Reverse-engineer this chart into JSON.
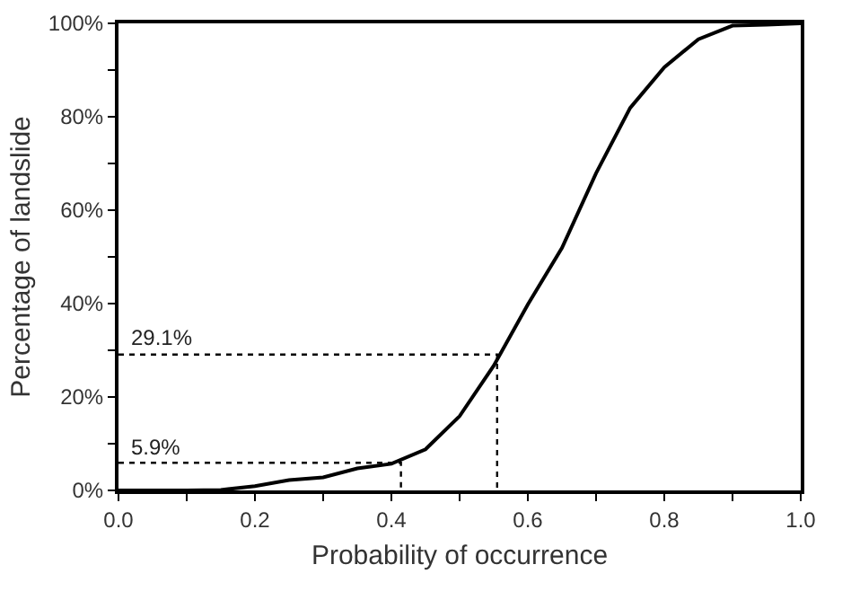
{
  "chart_data": {
    "type": "line",
    "xlabel": "Probability of occurrence",
    "ylabel": "Percentage of landslide",
    "series": [
      {
        "color": "#000000",
        "x": [
          0,
          0.1,
          0.15,
          0.2,
          0.25,
          0.3,
          0.35,
          0.4,
          0.45,
          0.5,
          0.55,
          0.6,
          0.65,
          0.7,
          0.75,
          0.8,
          0.85,
          0.9,
          0.95,
          1.0
        ],
        "values": [
          0,
          0,
          0.1,
          0.9,
          2.2,
          2.8,
          4.7,
          5.7,
          8.8,
          15.9,
          26.7,
          39.8,
          51.9,
          67.9,
          81.9,
          90.6,
          96.6,
          99.5,
          99.7,
          100
        ]
      },
      {
        "color": "#000000",
        "line_style": "dotted",
        "x": [
          0,
          0.555,
          0.555
        ],
        "values": [
          29.1,
          29.1,
          0
        ]
      },
      {
        "color": "#000000",
        "line_style": "dotted",
        "x": [
          0,
          0.414,
          0.414
        ],
        "values": [
          5.9,
          5.9,
          0
        ]
      }
    ],
    "annotations": [
      {
        "text": "29.1%",
        "x": 0,
        "y": 29.1
      },
      {
        "text": "5.9%",
        "x": 0,
        "y": 5.9
      }
    ],
    "xlim": [
      0,
      1
    ],
    "ylim": [
      0,
      100
    ],
    "xticks": [
      {
        "value": 0,
        "label": "0.0"
      },
      {
        "value": 0.1,
        "label": null
      },
      0.2,
      {
        "value": 0.3,
        "label": null
      },
      0.4,
      {
        "value": 0.5,
        "label": null
      },
      0.6,
      {
        "value": 0.7,
        "label": null
      },
      0.8,
      {
        "value": 0.9,
        "label": null
      },
      {
        "value": 1,
        "label": "1.0"
      }
    ],
    "yticks": [
      {
        "value": 0,
        "label": "0%"
      },
      {
        "value": 10,
        "label": null
      },
      {
        "value": 20,
        "label": "20%"
      },
      {
        "value": 30,
        "label": null
      },
      {
        "value": 40,
        "label": "40%"
      },
      {
        "value": 50,
        "label": null
      },
      {
        "value": 60,
        "label": "60%"
      },
      {
        "value": 70,
        "label": null
      },
      {
        "value": 80,
        "label": "80%"
      },
      {
        "value": 90,
        "label": null
      },
      {
        "value": 100,
        "label": "100%"
      }
    ],
    "grid": false,
    "marker": "none",
    "line_style": "solid"
  }
}
